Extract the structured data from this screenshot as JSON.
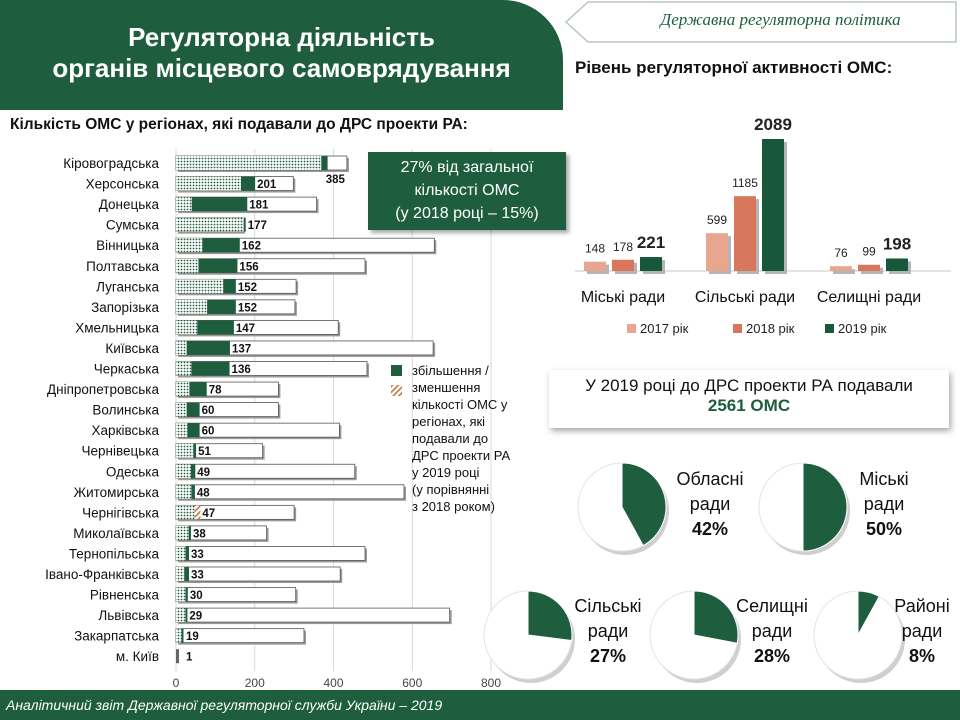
{
  "title": {
    "line1": "Регуляторна діяльність",
    "line2": "органів місцевого самоврядування"
  },
  "dept_label": "Державна регуляторна політика",
  "left_heading": "Кількість ОМС у регіонах, які подавали до ДРС проекти РА:",
  "right_heading": "Рівень регуляторної активності ОМС:",
  "colors": {
    "green": "#1e5e3e",
    "dark_green": "#17573a",
    "salmon_light": "#e8a68e",
    "salmon": "#d9775c",
    "hatch_orange": "#c8743e"
  },
  "callout": {
    "line1": "27% від загальної",
    "line2": "кількості ОМС",
    "line3": "(у 2018 році – 15%)"
  },
  "legend_note": {
    "line1": "збільшення /",
    "line2": "зменшення",
    "line3": "кількості ОМС у",
    "line4": "регіонах, які",
    "line5": "подавали до",
    "line6": "ДРС проекти РА",
    "line7": "у 2019 році",
    "line8": "(у порівнянні",
    "line9": "з 2018 роком)"
  },
  "total": {
    "line": "У 2019 році до ДРС проекти РА подавали",
    "count": "2561 ОМС"
  },
  "footer": "Аналітичний звіт Державної регуляторної служби України – 2019",
  "chart_data": [
    {
      "type": "bar",
      "orientation": "horizontal",
      "xlim": [
        0,
        800
      ],
      "x_ticks": [
        "0",
        "200",
        "400",
        "600",
        "800"
      ],
      "categories": [
        "Кіровоградська",
        "Херсонська",
        "Донецька",
        "Сумська",
        "Вінницька",
        "Полтавська",
        "Луганська",
        "Запорізька",
        "Хмельницька",
        "Київська",
        "Черкаська",
        "Дніпропетровська",
        "Волинська",
        "Харківська",
        "Чернівецька",
        "Одеська",
        "Житомирська",
        "Чернігівська",
        "Миколаївська",
        "Тернопільська",
        "Івано-Франківська",
        "Рівненська",
        "Львівська",
        "Закарпатська",
        "м. Київ"
      ],
      "series": [
        {
          "values": [
            385,
            201,
            181,
            177,
            162,
            156,
            152,
            152,
            147,
            137,
            136,
            78,
            60,
            60,
            51,
            49,
            48,
            47,
            38,
            33,
            33,
            30,
            29,
            19,
            1
          ]
        }
      ],
      "base_2018": [
        369,
        165,
        40,
        172,
        67,
        57,
        120,
        79,
        54,
        27,
        39,
        34,
        27,
        29,
        44,
        38,
        39,
        62,
        32,
        24,
        21,
        24,
        24,
        14,
        0
      ],
      "total": [
        434,
        298,
        357,
        170,
        656,
        480,
        305,
        302,
        412,
        653,
        485,
        260,
        260,
        415,
        220,
        454,
        579,
        300,
        230,
        480,
        417,
        304,
        695,
        325,
        1
      ],
      "change_direction": [
        "up",
        "up",
        "up",
        "up",
        "up",
        "up",
        "up",
        "up",
        "up",
        "up",
        "up",
        "up",
        "up",
        "up",
        "up",
        "up",
        "up",
        "down",
        "up",
        "up",
        "up",
        "up",
        "up",
        "up",
        "up"
      ]
    },
    {
      "type": "bar",
      "categories": [
        "Міські ради",
        "Сільські ради",
        "Селищні  ради"
      ],
      "series": [
        {
          "name": "2017 рік",
          "values": [
            148,
            599,
            76
          ]
        },
        {
          "name": "2018 рік",
          "values": [
            178,
            1185,
            99
          ]
        },
        {
          "name": "2019 рік",
          "values": [
            221,
            2089,
            198
          ]
        }
      ]
    },
    {
      "type": "pie",
      "pies": [
        {
          "label1": "Обласні",
          "label2": "ради",
          "percent_label": "42%",
          "value": 42
        },
        {
          "label1": "Міські",
          "label2": "ради",
          "percent_label": "50%",
          "value": 50
        },
        {
          "label1": "Сільські",
          "label2": "ради",
          "percent_label": "27%",
          "value": 27
        },
        {
          "label1": "Селищні",
          "label2": "ради",
          "percent_label": "28%",
          "value": 28
        },
        {
          "label1": "Районі",
          "label2": "ради",
          "percent_label": "8%",
          "value": 8
        }
      ]
    }
  ]
}
